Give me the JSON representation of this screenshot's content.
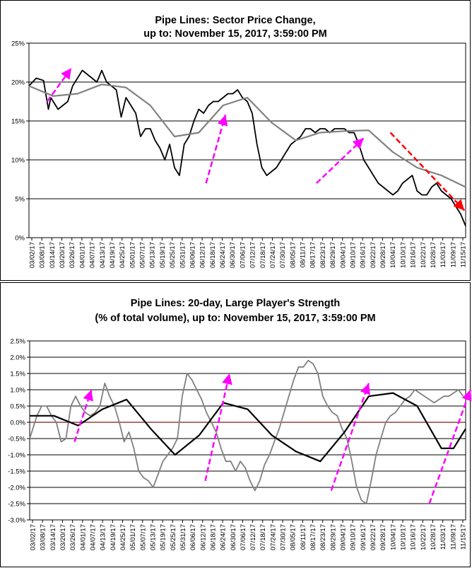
{
  "top_chart": {
    "title_line1": "Pipe Lines: Sector Price Change,",
    "title_line2": "up to: November 15, 2017, 3:59:00 PM",
    "y_ticks": [
      "25%",
      "20%",
      "15%",
      "10%",
      "5%",
      "0%"
    ],
    "x_ticks": [
      "03/02/17",
      "03/08/17",
      "03/14/17",
      "03/20/17",
      "03/26/17",
      "04/01/17",
      "04/07/17",
      "04/13/17",
      "04/19/17",
      "04/25/17",
      "05/01/17",
      "05/07/17",
      "05/13/17",
      "05/19/17",
      "05/25/17",
      "05/31/17",
      "06/06/17",
      "06/12/17",
      "06/18/17",
      "06/24/17",
      "06/30/17",
      "07/06/17",
      "07/12/17",
      "07/18/17",
      "07/24/17",
      "07/30/17",
      "08/05/17",
      "08/11/17",
      "08/17/17",
      "08/23/17",
      "08/29/17",
      "09/04/17",
      "09/10/17",
      "09/16/17",
      "09/22/17",
      "09/28/17",
      "10/04/17",
      "10/10/17",
      "10/16/17",
      "10/22/17",
      "10/28/17",
      "11/03/17",
      "11/09/17",
      "11/15/17"
    ]
  },
  "bottom_chart": {
    "title_line1": "Pipe Lines: 20-day, Large Player's Strength",
    "title_line2": "(% of total volume), up to: November 15, 2017, 3:59:00 PM",
    "y_ticks": [
      "2.5%",
      "2.0%",
      "1.5%",
      "1.0%",
      "0.5%",
      "0.0%",
      "-0.5%",
      "-1.0%",
      "-1.5%",
      "-2.0%",
      "-2.5%",
      "-3.0%"
    ],
    "x_ticks": [
      "03/02/17",
      "03/08/17",
      "03/14/17",
      "03/20/17",
      "03/26/17",
      "04/01/17",
      "04/07/17",
      "04/13/17",
      "04/19/17",
      "04/25/17",
      "05/01/17",
      "05/07/17",
      "05/13/17",
      "05/19/17",
      "05/25/17",
      "05/31/17",
      "06/06/17",
      "06/12/17",
      "06/18/17",
      "06/24/17",
      "06/30/17",
      "07/06/17",
      "07/12/17",
      "07/18/17",
      "07/24/17",
      "07/30/17",
      "08/05/17",
      "08/11/17",
      "08/17/17",
      "08/23/17",
      "08/29/17",
      "09/04/17",
      "09/10/17",
      "09/16/17",
      "09/22/17",
      "09/28/17",
      "10/04/17",
      "10/10/17",
      "10/16/17",
      "10/22/17",
      "10/28/17",
      "11/03/17",
      "11/09/17",
      "11/15/17"
    ]
  },
  "chart_data": [
    {
      "type": "line",
      "title": "Pipe Lines: Sector Price Change, up to: November 15, 2017, 3:59:00 PM",
      "xlabel": "",
      "ylabel": "",
      "ylim": [
        0,
        25
      ],
      "xlim_index": [
        0,
        180
      ],
      "grid": "horizontal",
      "colors": {
        "price": "#000000",
        "average": "#808080",
        "up_arrow": "#ff00ff",
        "down_arrow": "#ff0000"
      },
      "series": [
        {
          "x": [
            0,
            3,
            6,
            8,
            9,
            10,
            12,
            14,
            16,
            18,
            20,
            22,
            24,
            26,
            28,
            30,
            32,
            34,
            36,
            38,
            40,
            42,
            44,
            46,
            48,
            50,
            52,
            54,
            56,
            58,
            60,
            62,
            64,
            66,
            68,
            70,
            72,
            74,
            76,
            78,
            80,
            82,
            84,
            86,
            88,
            90,
            92,
            94,
            96,
            98,
            100,
            102,
            104,
            106,
            108,
            110,
            112,
            114,
            116,
            118,
            120,
            122,
            124,
            126,
            128,
            130,
            132,
            134,
            136,
            138,
            140,
            142,
            144,
            146,
            148,
            150,
            152,
            154,
            156,
            158,
            160,
            162,
            164,
            166,
            168,
            170,
            172,
            174,
            176,
            178,
            180
          ],
          "values": [
            19.5,
            20.5,
            20.2,
            16.5,
            18,
            17.5,
            16.5,
            17,
            17.5,
            19.5,
            20.5,
            21.5,
            21,
            20.5,
            20,
            21.5,
            20,
            19.5,
            19,
            15.5,
            18,
            17,
            16,
            13,
            14,
            14,
            12.5,
            11.5,
            10,
            12,
            9,
            8,
            12,
            13,
            15,
            16.5,
            16,
            17,
            17.5,
            17.5,
            18,
            18.5,
            18.5,
            19,
            18,
            17.5,
            16,
            12,
            9,
            8,
            8.5,
            9,
            10,
            11,
            12,
            12.5,
            13,
            14,
            14,
            13.5,
            14,
            14,
            13.5,
            14,
            14,
            14,
            13.5,
            13.5,
            12,
            10,
            9,
            8,
            7,
            6.5,
            6,
            5.5,
            6,
            7,
            7.5,
            8,
            6,
            5.5,
            5.5,
            6.5,
            7,
            6,
            5.5,
            5,
            4,
            3,
            1.5
          ]
        },
        {
          "x": [
            0,
            10,
            20,
            30,
            40,
            50,
            60,
            70,
            80,
            90,
            100,
            110,
            120,
            130,
            140,
            150,
            160,
            170,
            180
          ],
          "values": [
            19.5,
            18.2,
            18.5,
            19.7,
            19.3,
            17,
            13,
            13.5,
            17,
            18,
            14.8,
            12.5,
            13.5,
            13.7,
            13.8,
            11,
            9,
            8,
            6.5
          ]
        }
      ],
      "annotations": [
        {
          "type": "arrow",
          "color": "#ff00ff",
          "from": [
            7.5,
            17.5
          ],
          "to": [
            17.5,
            21.8
          ]
        },
        {
          "type": "arrow",
          "color": "#ff00ff",
          "from": [
            73,
            7
          ],
          "to": [
            81,
            15.8
          ]
        },
        {
          "type": "arrow",
          "color": "#ff00ff",
          "from": [
            118.5,
            7
          ],
          "to": [
            138,
            12.8
          ]
        },
        {
          "type": "arrow",
          "color": "#ff0000",
          "from": [
            149,
            13.5
          ],
          "to": [
            179.5,
            3.5
          ]
        }
      ]
    },
    {
      "type": "line",
      "title": "Pipe Lines: 20-day, Large Player's Strength (% of total volume), up to: November 15, 2017, 3:59:00 PM",
      "xlabel": "",
      "ylabel": "",
      "ylim": [
        -3,
        2.5
      ],
      "xlim_index": [
        0,
        180
      ],
      "grid": "horizontal",
      "zero_line": {
        "value": 0,
        "color": "#cc0000",
        "style": "dotted"
      },
      "colors": {
        "strength": "#808080",
        "average": "#000000",
        "up_arrow": "#ff00ff"
      },
      "series": [
        {
          "x": [
            0,
            3,
            5,
            7,
            9,
            11,
            13,
            15,
            17,
            19,
            21,
            23,
            25,
            27,
            29,
            31,
            33,
            35,
            37,
            39,
            41,
            43,
            45,
            47,
            49,
            51,
            53,
            55,
            57,
            59,
            61,
            63,
            65,
            67,
            69,
            71,
            73,
            75,
            77,
            79,
            81,
            83,
            85,
            87,
            89,
            91,
            93,
            95,
            97,
            99,
            101,
            103,
            105,
            107,
            109,
            111,
            113,
            115,
            117,
            119,
            121,
            123,
            125,
            127,
            129,
            131,
            133,
            135,
            137,
            139,
            141,
            143,
            145,
            147,
            149,
            151,
            153,
            155,
            157,
            159,
            161,
            163,
            165,
            167,
            169,
            171,
            173,
            175,
            177,
            179
          ],
          "values": [
            -0.5,
            0.2,
            0.5,
            0.5,
            0.2,
            0,
            -0.6,
            -0.5,
            0.5,
            0.8,
            0.5,
            0.3,
            0.2,
            0.3,
            0.5,
            1.2,
            0.8,
            0.5,
            0,
            -0.6,
            -0.3,
            -0.8,
            -1.5,
            -1.7,
            -1.8,
            -2,
            -1.6,
            -1.2,
            -1,
            -0.8,
            -0.5,
            0.8,
            1.5,
            1.3,
            1,
            0.7,
            0.3,
            0,
            -0.3,
            -0.8,
            -1.2,
            -1.2,
            -1.5,
            -1.2,
            -1.4,
            -1.8,
            -2.1,
            -1.8,
            -1.3,
            -1,
            -0.6,
            -0.2,
            0.3,
            0.8,
            1.3,
            1.7,
            1.7,
            1.9,
            1.8,
            1.5,
            0.8,
            0.5,
            0.3,
            0.2,
            -0.2,
            -0.5,
            -1.2,
            -2,
            -2.4,
            -2.5,
            -1.8,
            -1,
            -0.5,
            0,
            0.2,
            0.3,
            0.5,
            0.7,
            0.8,
            1,
            0.9,
            0.8,
            0.7,
            0.6,
            0.7,
            0.8,
            0.8,
            0.9,
            1,
            0.8
          ]
        },
        {
          "x": [
            0,
            10,
            20,
            30,
            40,
            50,
            60,
            70,
            80,
            90,
            100,
            110,
            120,
            130,
            140,
            150,
            160,
            170,
            175,
            180
          ],
          "values": [
            0.2,
            0.2,
            -0.1,
            0.4,
            0.7,
            -0.2,
            -1,
            -0.4,
            0.6,
            0.4,
            -0.4,
            -0.9,
            -1.2,
            -0.3,
            0.8,
            0.9,
            0.5,
            -0.8,
            -0.8,
            -0.2
          ]
        }
      ],
      "annotations": [
        {
          "type": "arrow",
          "color": "#ff00ff",
          "from": [
            18.5,
            -0.6
          ],
          "to": [
            25.5,
            1.0
          ]
        },
        {
          "type": "arrow",
          "color": "#ff00ff",
          "from": [
            72.5,
            -1.8
          ],
          "to": [
            82.5,
            1.5
          ]
        },
        {
          "type": "arrow",
          "color": "#ff00ff",
          "from": [
            124.5,
            -2.1
          ],
          "to": [
            140,
            1.2
          ]
        },
        {
          "type": "arrow",
          "color": "#ff00ff",
          "from": [
            165,
            -2.5
          ],
          "to": [
            182,
            1.0
          ]
        }
      ]
    }
  ]
}
